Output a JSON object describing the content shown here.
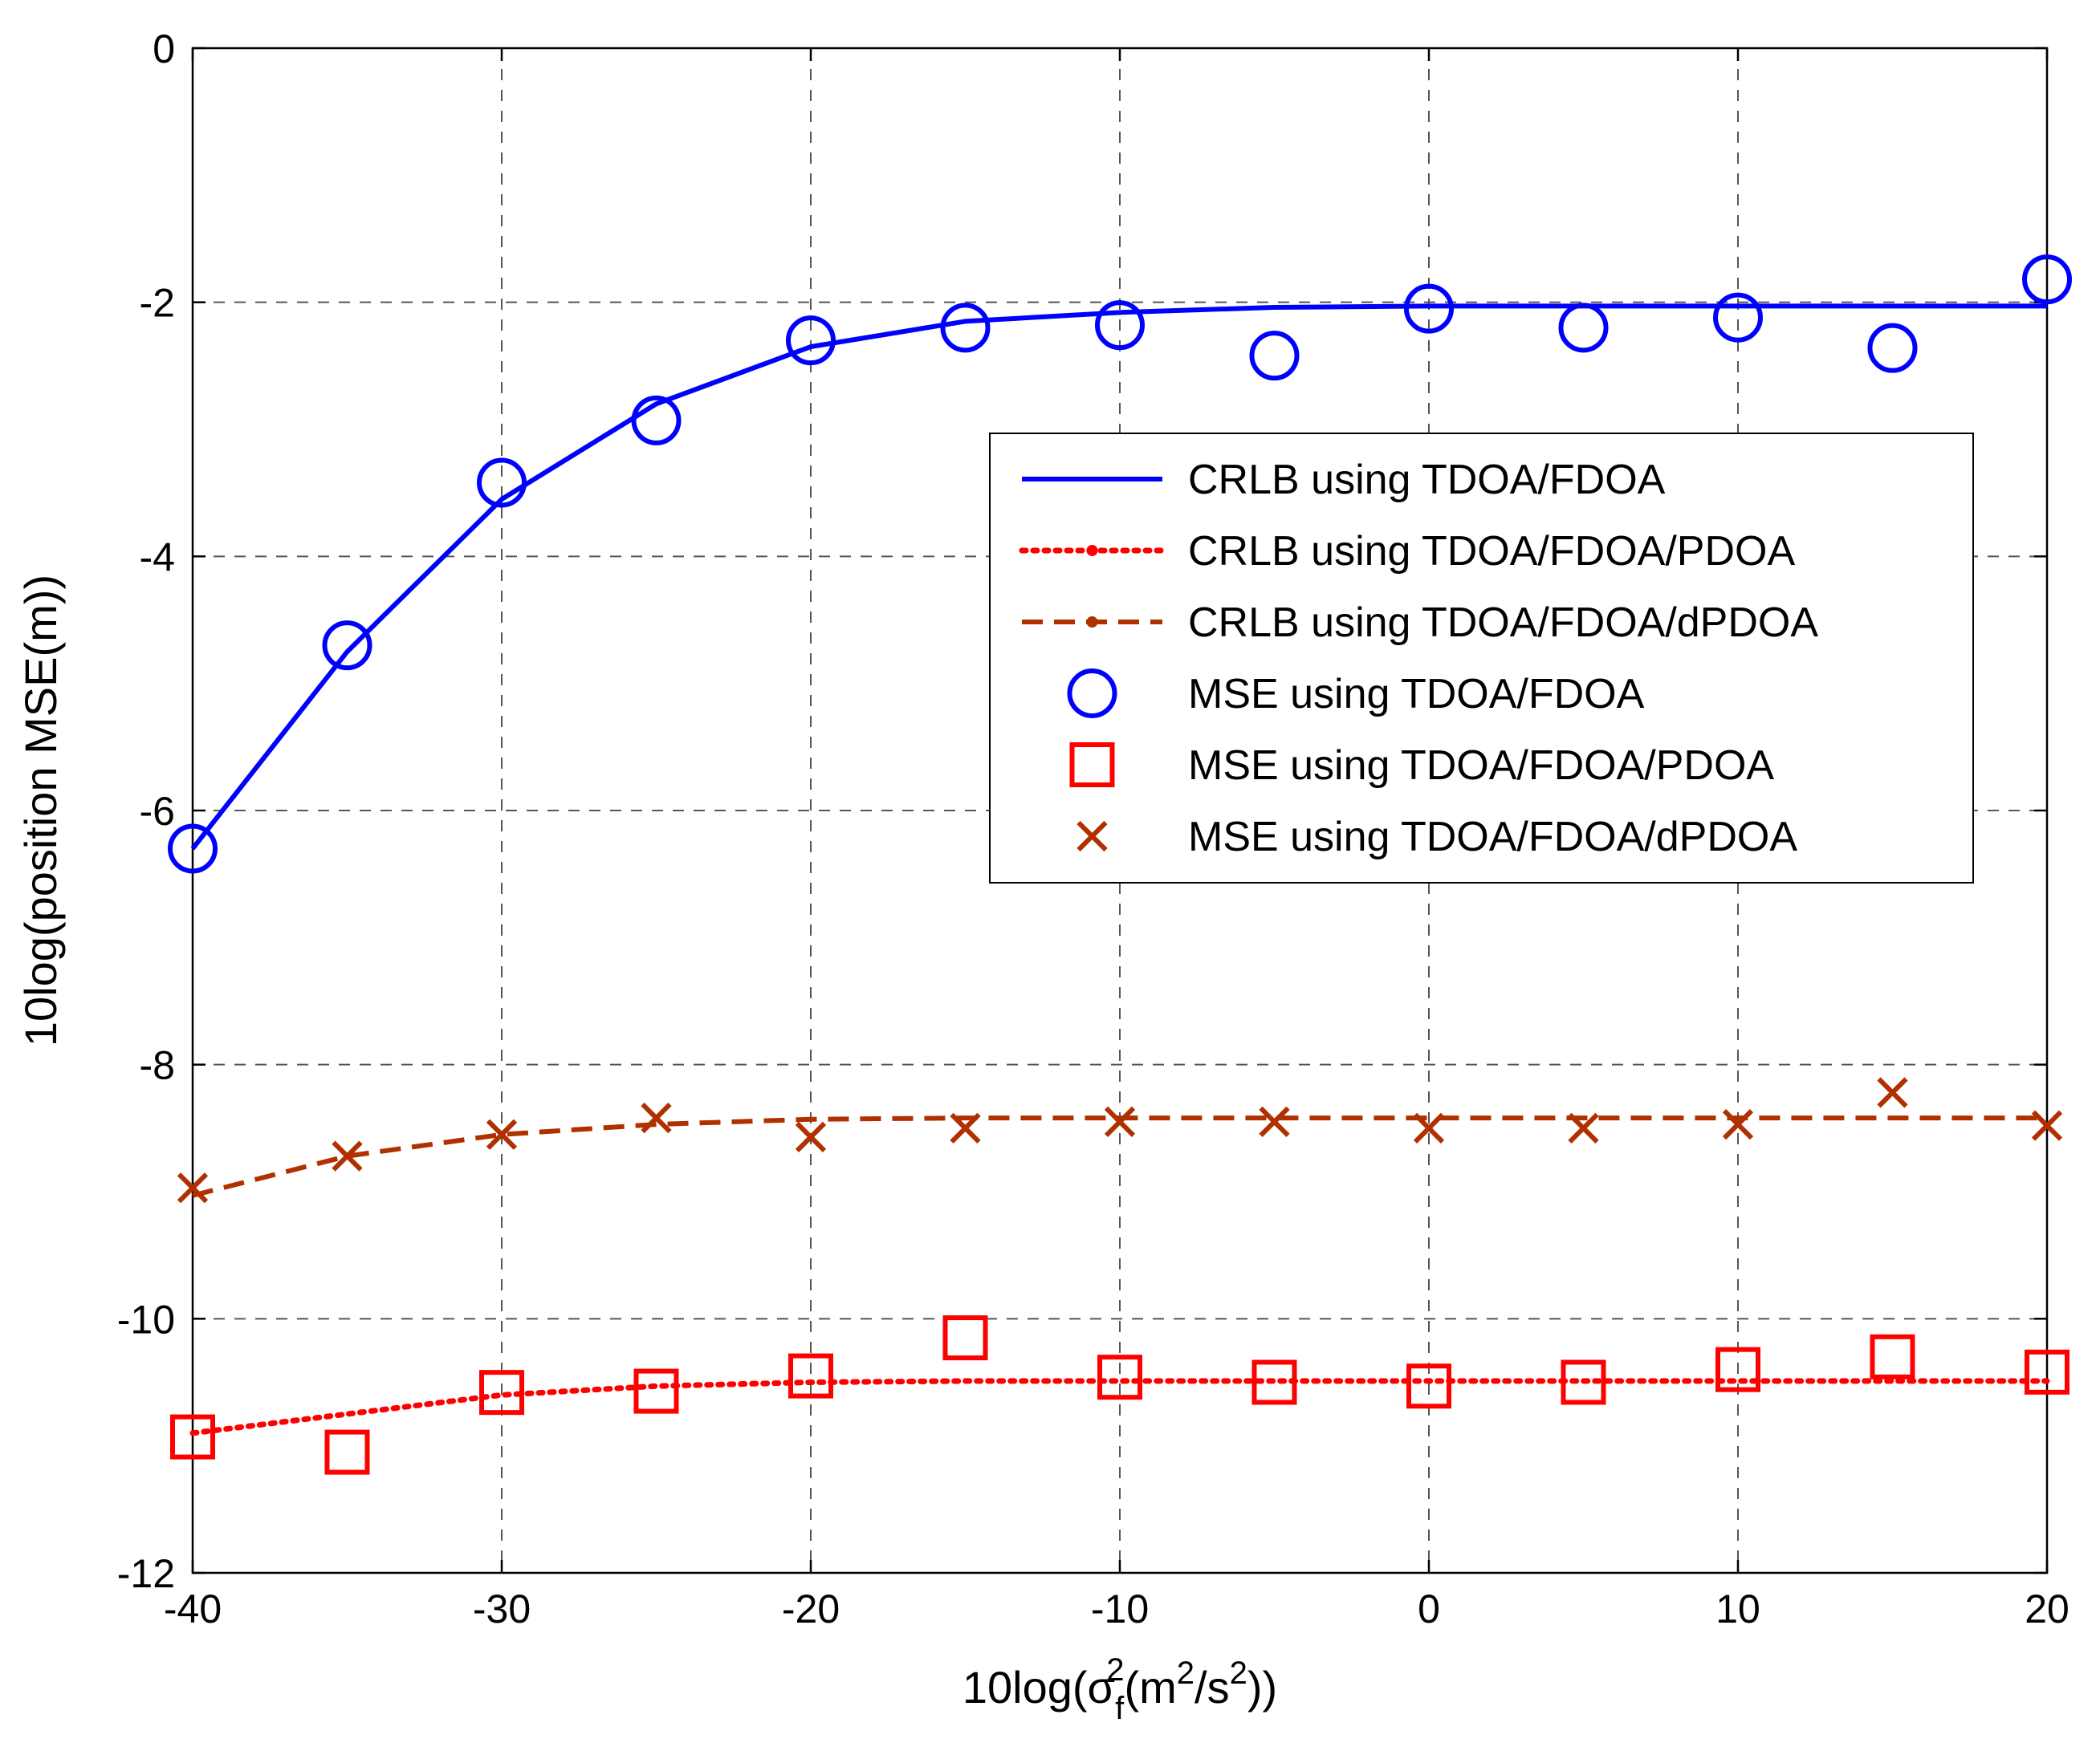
{
  "chart_data": {
    "type": "line",
    "title": "",
    "xlabel": {
      "prefix": "10log(",
      "sigma": "σ",
      "sub": "f",
      "sup": "2",
      "unit_open": "(m",
      "unit_sup": "2",
      "unit_mid": "/s",
      "unit_sup2": "2",
      "suffix": "))"
    },
    "ylabel": "10log(position MSE(m))",
    "xlim": [
      -40,
      20
    ],
    "ylim": [
      -12,
      0
    ],
    "xticks": [
      -40,
      -30,
      -20,
      -10,
      0,
      10,
      20
    ],
    "yticks": [
      0,
      -2,
      -4,
      -6,
      -8,
      -10,
      -12
    ],
    "grid": true,
    "legend_position": "center-right",
    "x": [
      -40,
      -35,
      -30,
      -25,
      -20,
      -15,
      -10,
      -5,
      0,
      5,
      10,
      15,
      20
    ],
    "series": [
      {
        "name": "CRLB using TDOA/FDOA",
        "style": "solid",
        "color": "#0000ff",
        "values": [
          -6.3,
          -4.75,
          -3.55,
          -2.8,
          -2.35,
          -2.15,
          -2.08,
          -2.04,
          -2.03,
          -2.03,
          -2.03,
          -2.03,
          -2.03
        ]
      },
      {
        "name": "CRLB using TDOA/FDOA/PDOA",
        "style": "dotted",
        "color": "#ff0000",
        "values": [
          -10.9,
          -10.75,
          -10.6,
          -10.53,
          -10.5,
          -10.49,
          -10.49,
          -10.49,
          -10.49,
          -10.49,
          -10.49,
          -10.49,
          -10.49
        ]
      },
      {
        "name": "CRLB using TDOA/FDOA/dPDOA",
        "style": "dashed",
        "color": "#b03000",
        "values": [
          -9.03,
          -8.72,
          -8.55,
          -8.47,
          -8.43,
          -8.42,
          -8.42,
          -8.42,
          -8.42,
          -8.42,
          -8.42,
          -8.42,
          -8.42
        ]
      },
      {
        "name": "MSE using TDOA/FDOA",
        "style": "circle",
        "color": "#0000ff",
        "values": [
          -6.3,
          -4.7,
          -3.42,
          -2.93,
          -2.3,
          -2.2,
          -2.18,
          -2.42,
          -2.05,
          -2.2,
          -2.12,
          -2.36,
          -1.82
        ]
      },
      {
        "name": "MSE using TDOA/FDOA/PDOA",
        "style": "square",
        "color": "#ff0000",
        "values": [
          -10.93,
          -11.05,
          -10.58,
          -10.57,
          -10.45,
          -10.15,
          -10.46,
          -10.5,
          -10.53,
          -10.5,
          -10.4,
          -10.3,
          -10.42
        ]
      },
      {
        "name": "MSE using TDOA/FDOA/dPDOA",
        "style": "x",
        "color": "#b03000",
        "values": [
          -8.97,
          -8.72,
          -8.55,
          -8.42,
          -8.57,
          -8.5,
          -8.45,
          -8.45,
          -8.5,
          -8.5,
          -8.47,
          -8.22,
          -8.48
        ]
      }
    ]
  }
}
